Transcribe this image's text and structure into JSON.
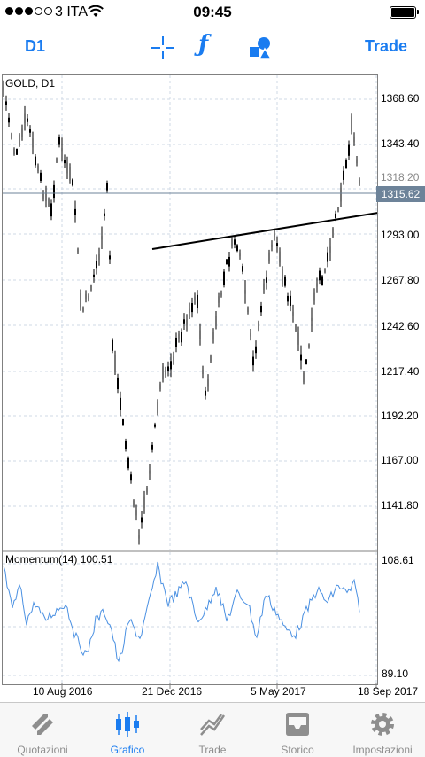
{
  "status": {
    "carrier": "3 ITA",
    "time": "09:45"
  },
  "toolbar": {
    "period": "D1",
    "trade": "Trade"
  },
  "chart": {
    "symbol_title": "GOLD, D1",
    "current_price": "1315.62",
    "price_axis": [
      "1368.60",
      "1343.40",
      "1318.20",
      "1293.00",
      "1267.80",
      "1242.60",
      "1217.40",
      "1192.20",
      "1167.00",
      "1141.80"
    ],
    "momentum_title": "Momentum(14) 100.51",
    "momentum_axis": [
      "108.61",
      "89.10"
    ],
    "dates": [
      "10 Aug 2016",
      "21 Dec 2016",
      "5 May 2017",
      "18 Sep 2017"
    ]
  },
  "tabs": [
    {
      "label": "Quotazioni",
      "icon": "quotes-icon"
    },
    {
      "label": "Grafico",
      "icon": "chart-icon"
    },
    {
      "label": "Trade",
      "icon": "trade-icon"
    },
    {
      "label": "Storico",
      "icon": "history-icon"
    },
    {
      "label": "Impostazioni",
      "icon": "settings-icon"
    }
  ],
  "colors": {
    "accent": "#1a7cf0",
    "momentum_line": "#4a90e2",
    "current_price_bg": "#6d8399"
  }
}
